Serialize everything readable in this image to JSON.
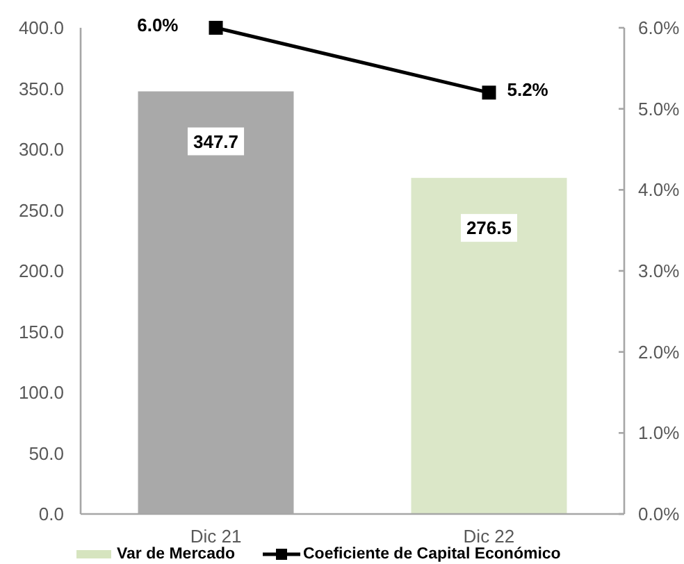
{
  "chart_data": {
    "type": "bar",
    "categories": [
      "Dic 21",
      "Dic 22"
    ],
    "series": [
      {
        "name": "Var de Mercado",
        "color": "#d6e4bf",
        "colors": [
          "#a9a9a9",
          "#dbe7c8"
        ],
        "values": [
          347.7,
          276.5
        ],
        "value_labels": [
          "347.7",
          "276.5"
        ]
      },
      {
        "name": "Coeficiente de Capital Económico",
        "type": "line",
        "axis": "y2",
        "color": "#000000",
        "values": [
          6.0,
          5.2
        ],
        "value_labels": [
          "6.0%",
          "5.2%"
        ]
      }
    ],
    "ylim": [
      0,
      400
    ],
    "yticks": [
      {
        "value": 0,
        "label": "0.0"
      },
      {
        "value": 50,
        "label": "50.0"
      },
      {
        "value": 100,
        "label": "100.0"
      },
      {
        "value": 150,
        "label": "150.0"
      },
      {
        "value": 200,
        "label": "200.0"
      },
      {
        "value": 250,
        "label": "250.0"
      },
      {
        "value": 300,
        "label": "300.0"
      },
      {
        "value": 350,
        "label": "350.0"
      },
      {
        "value": 400,
        "label": "400.0"
      }
    ],
    "y2lim": [
      0,
      6
    ],
    "y2ticks": [
      {
        "value": 0,
        "label": "0.0%"
      },
      {
        "value": 1,
        "label": "1.0%"
      },
      {
        "value": 2,
        "label": "2.0%"
      },
      {
        "value": 3,
        "label": "3.0%"
      },
      {
        "value": 4,
        "label": "4.0%"
      },
      {
        "value": 5,
        "label": "5.0%"
      },
      {
        "value": 6,
        "label": "6.0%"
      }
    ],
    "legend": "bottom",
    "marker": "square",
    "line_style": "solid"
  }
}
